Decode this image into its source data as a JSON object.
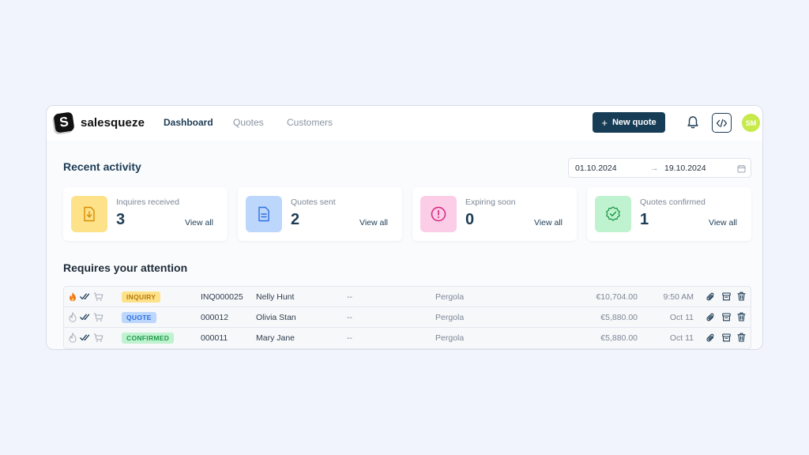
{
  "brand": {
    "name": "salesqueze",
    "logo_letter": "S"
  },
  "nav": {
    "links": [
      {
        "label": "Dashboard",
        "active": true
      },
      {
        "label": "Quotes",
        "active": false
      },
      {
        "label": "Customers",
        "active": false
      }
    ],
    "new_quote_label": "New quote",
    "avatar_initials": "SM",
    "icons": [
      "plus-icon",
      "bell-icon",
      "code-icon"
    ]
  },
  "recent": {
    "title": "Recent activity",
    "date_from": "01.10.2024",
    "date_arrow": "→",
    "date_to": "19.10.2024",
    "cards": [
      {
        "label": "Inquires received",
        "value": "3",
        "link": "View all",
        "icon": "download-file-icon",
        "bg": "#fde28a",
        "fg": "#d98b00"
      },
      {
        "label": "Quotes sent",
        "value": "2",
        "link": "View all",
        "icon": "document-icon",
        "bg": "#bcd7fb",
        "fg": "#2f6fe0"
      },
      {
        "label": "Expiring soon",
        "value": "0",
        "link": "View all",
        "icon": "alert-circle-icon",
        "bg": "#fbcde6",
        "fg": "#d6247e"
      },
      {
        "label": "Quotes confirmed",
        "value": "1",
        "link": "View all",
        "icon": "check-badge-icon",
        "bg": "#bff2cf",
        "fg": "#1f9a4c"
      }
    ]
  },
  "attention": {
    "title": "Requires your attention",
    "rows": [
      {
        "status": "INQUIRY",
        "status_bg": "#fde28a",
        "status_fg": "#b9770a",
        "hot": true,
        "id": "INQ000025",
        "customer": "Nelly Hunt",
        "placeholder": "--",
        "product": "Pergola",
        "amount": "€10,704.00",
        "time": "9:50 AM"
      },
      {
        "status": "QUOTE",
        "status_bg": "#bcd7fb",
        "status_fg": "#2f6fe0",
        "hot": false,
        "id": "000012",
        "customer": "Olivia Stan",
        "placeholder": "--",
        "product": "Pergola",
        "amount": "€5,880.00",
        "time": "Oct 11"
      },
      {
        "status": "CONFIRMED",
        "status_bg": "#bff2cf",
        "status_fg": "#1f9a4c",
        "hot": false,
        "id": "000011",
        "customer": "Mary Jane",
        "placeholder": "--",
        "product": "Pergola",
        "amount": "€5,880.00",
        "time": "Oct 11"
      }
    ]
  }
}
